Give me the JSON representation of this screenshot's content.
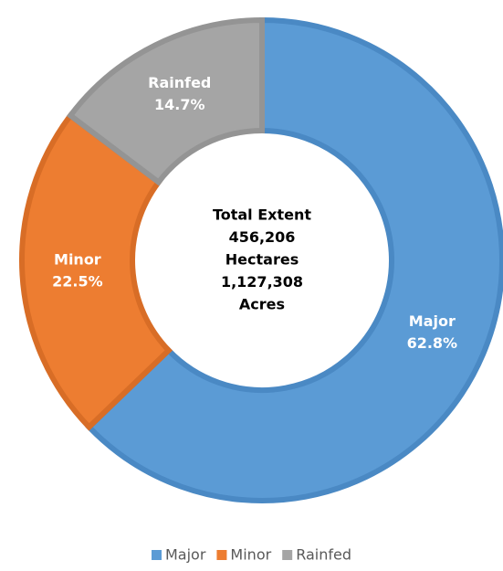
{
  "chart_data": {
    "type": "donut",
    "categories": [
      "Major",
      "Minor",
      "Rainfed"
    ],
    "values": [
      62.8,
      22.5,
      14.7
    ],
    "value_labels": [
      "62.8%",
      "22.5%",
      "14.7%"
    ],
    "colors": [
      "#5b9bd5",
      "#ed7d31",
      "#a5a5a5"
    ],
    "border_colors": [
      "#4a89c4",
      "#d86d26",
      "#949494"
    ],
    "center_text": [
      "Total Extent",
      "456,206",
      "Hectares",
      "1,127,308",
      "Acres"
    ],
    "legend": "bottom"
  }
}
